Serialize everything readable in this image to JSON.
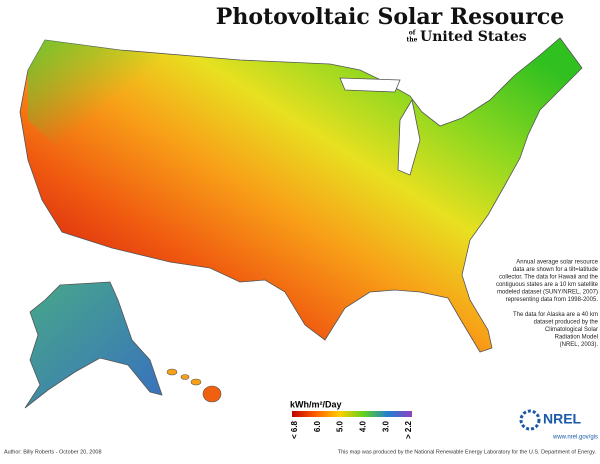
{
  "header": {
    "title": "Photovoltaic Solar Resource",
    "of_the": [
      "of",
      "the"
    ],
    "subtitle": "United States"
  },
  "notes": {
    "paragraph_1": [
      "Annual average solar resource",
      "data are shown for a tilt=latitude",
      "collector. The data for Hawaii and the",
      "contiguous states are a 10 km satellite",
      "modeled dataset (SUNY/NREL, 2007)",
      "representing data from 1998-2005."
    ],
    "paragraph_2": [
      "The data for Alaska are a 40 km",
      "dataset produced by the",
      "Climatological Solar",
      "Radiation Model",
      "(NREL, 2003)."
    ]
  },
  "legend": {
    "title": "kWh/m²/Day",
    "labels": [
      "< 6.8",
      "6.0",
      "5.0",
      "4.0",
      "3.0",
      "> 2.2"
    ]
  },
  "logo": {
    "name": "NREL",
    "url": "www.nrel.gov/gis"
  },
  "footer": {
    "author": "Author: Billy Roberts - October 20, 2008",
    "credit": "This map was produced by the National Renewable Energy Laboratory for the U.S. Department of Energy."
  }
}
